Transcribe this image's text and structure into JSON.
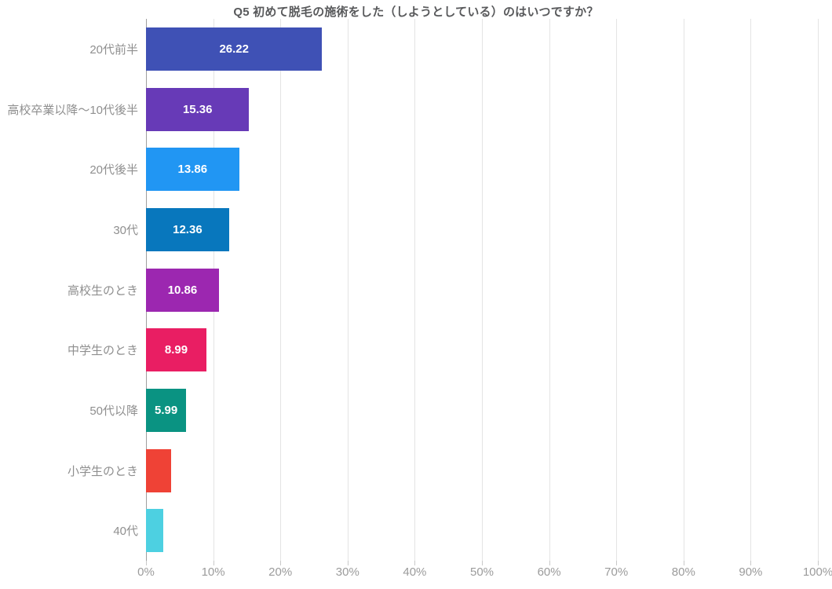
{
  "chart_data": {
    "type": "bar",
    "orientation": "horizontal",
    "title": "Q5 初めて脱毛の施術をした（しようとしている）のはいつですか？",
    "categories": [
      "20代前半",
      "高校卒業以降～10代後半",
      "20代後半",
      "30代",
      "高校生のとき",
      "中学生のとき",
      "50代以降",
      "小学生のとき",
      "40代"
    ],
    "values": [
      26.22,
      15.36,
      13.86,
      12.36,
      10.86,
      8.99,
      5.99,
      3.74,
      2.62
    ],
    "bar_labels": [
      "26.22",
      "15.36",
      "13.86",
      "12.36",
      "10.86",
      "8.99",
      "5.99",
      "",
      ""
    ],
    "bar_colors": [
      "#3f51b5",
      "#673ab7",
      "#2196f3",
      "#0877bd",
      "#9c27b0",
      "#e91e63",
      "#0a9382",
      "#ef4236",
      "#4dd0e1"
    ],
    "xlabel": "",
    "ylabel": "",
    "xlim": [
      0,
      100
    ],
    "x_tick_step": 10,
    "x_ticks": [
      "0%",
      "10%",
      "20%",
      "30%",
      "40%",
      "50%",
      "60%",
      "70%",
      "80%",
      "90%",
      "100%"
    ],
    "grid": "vertical",
    "legend": "none",
    "value_label_color": "#ffffff",
    "axis_label_color": "#9b9b9b",
    "category_label_color": "#8f8f8f",
    "gridline_color": "#e4e4e4",
    "zero_line_color": "#9e9e9e",
    "background_color": "#ffffff"
  }
}
